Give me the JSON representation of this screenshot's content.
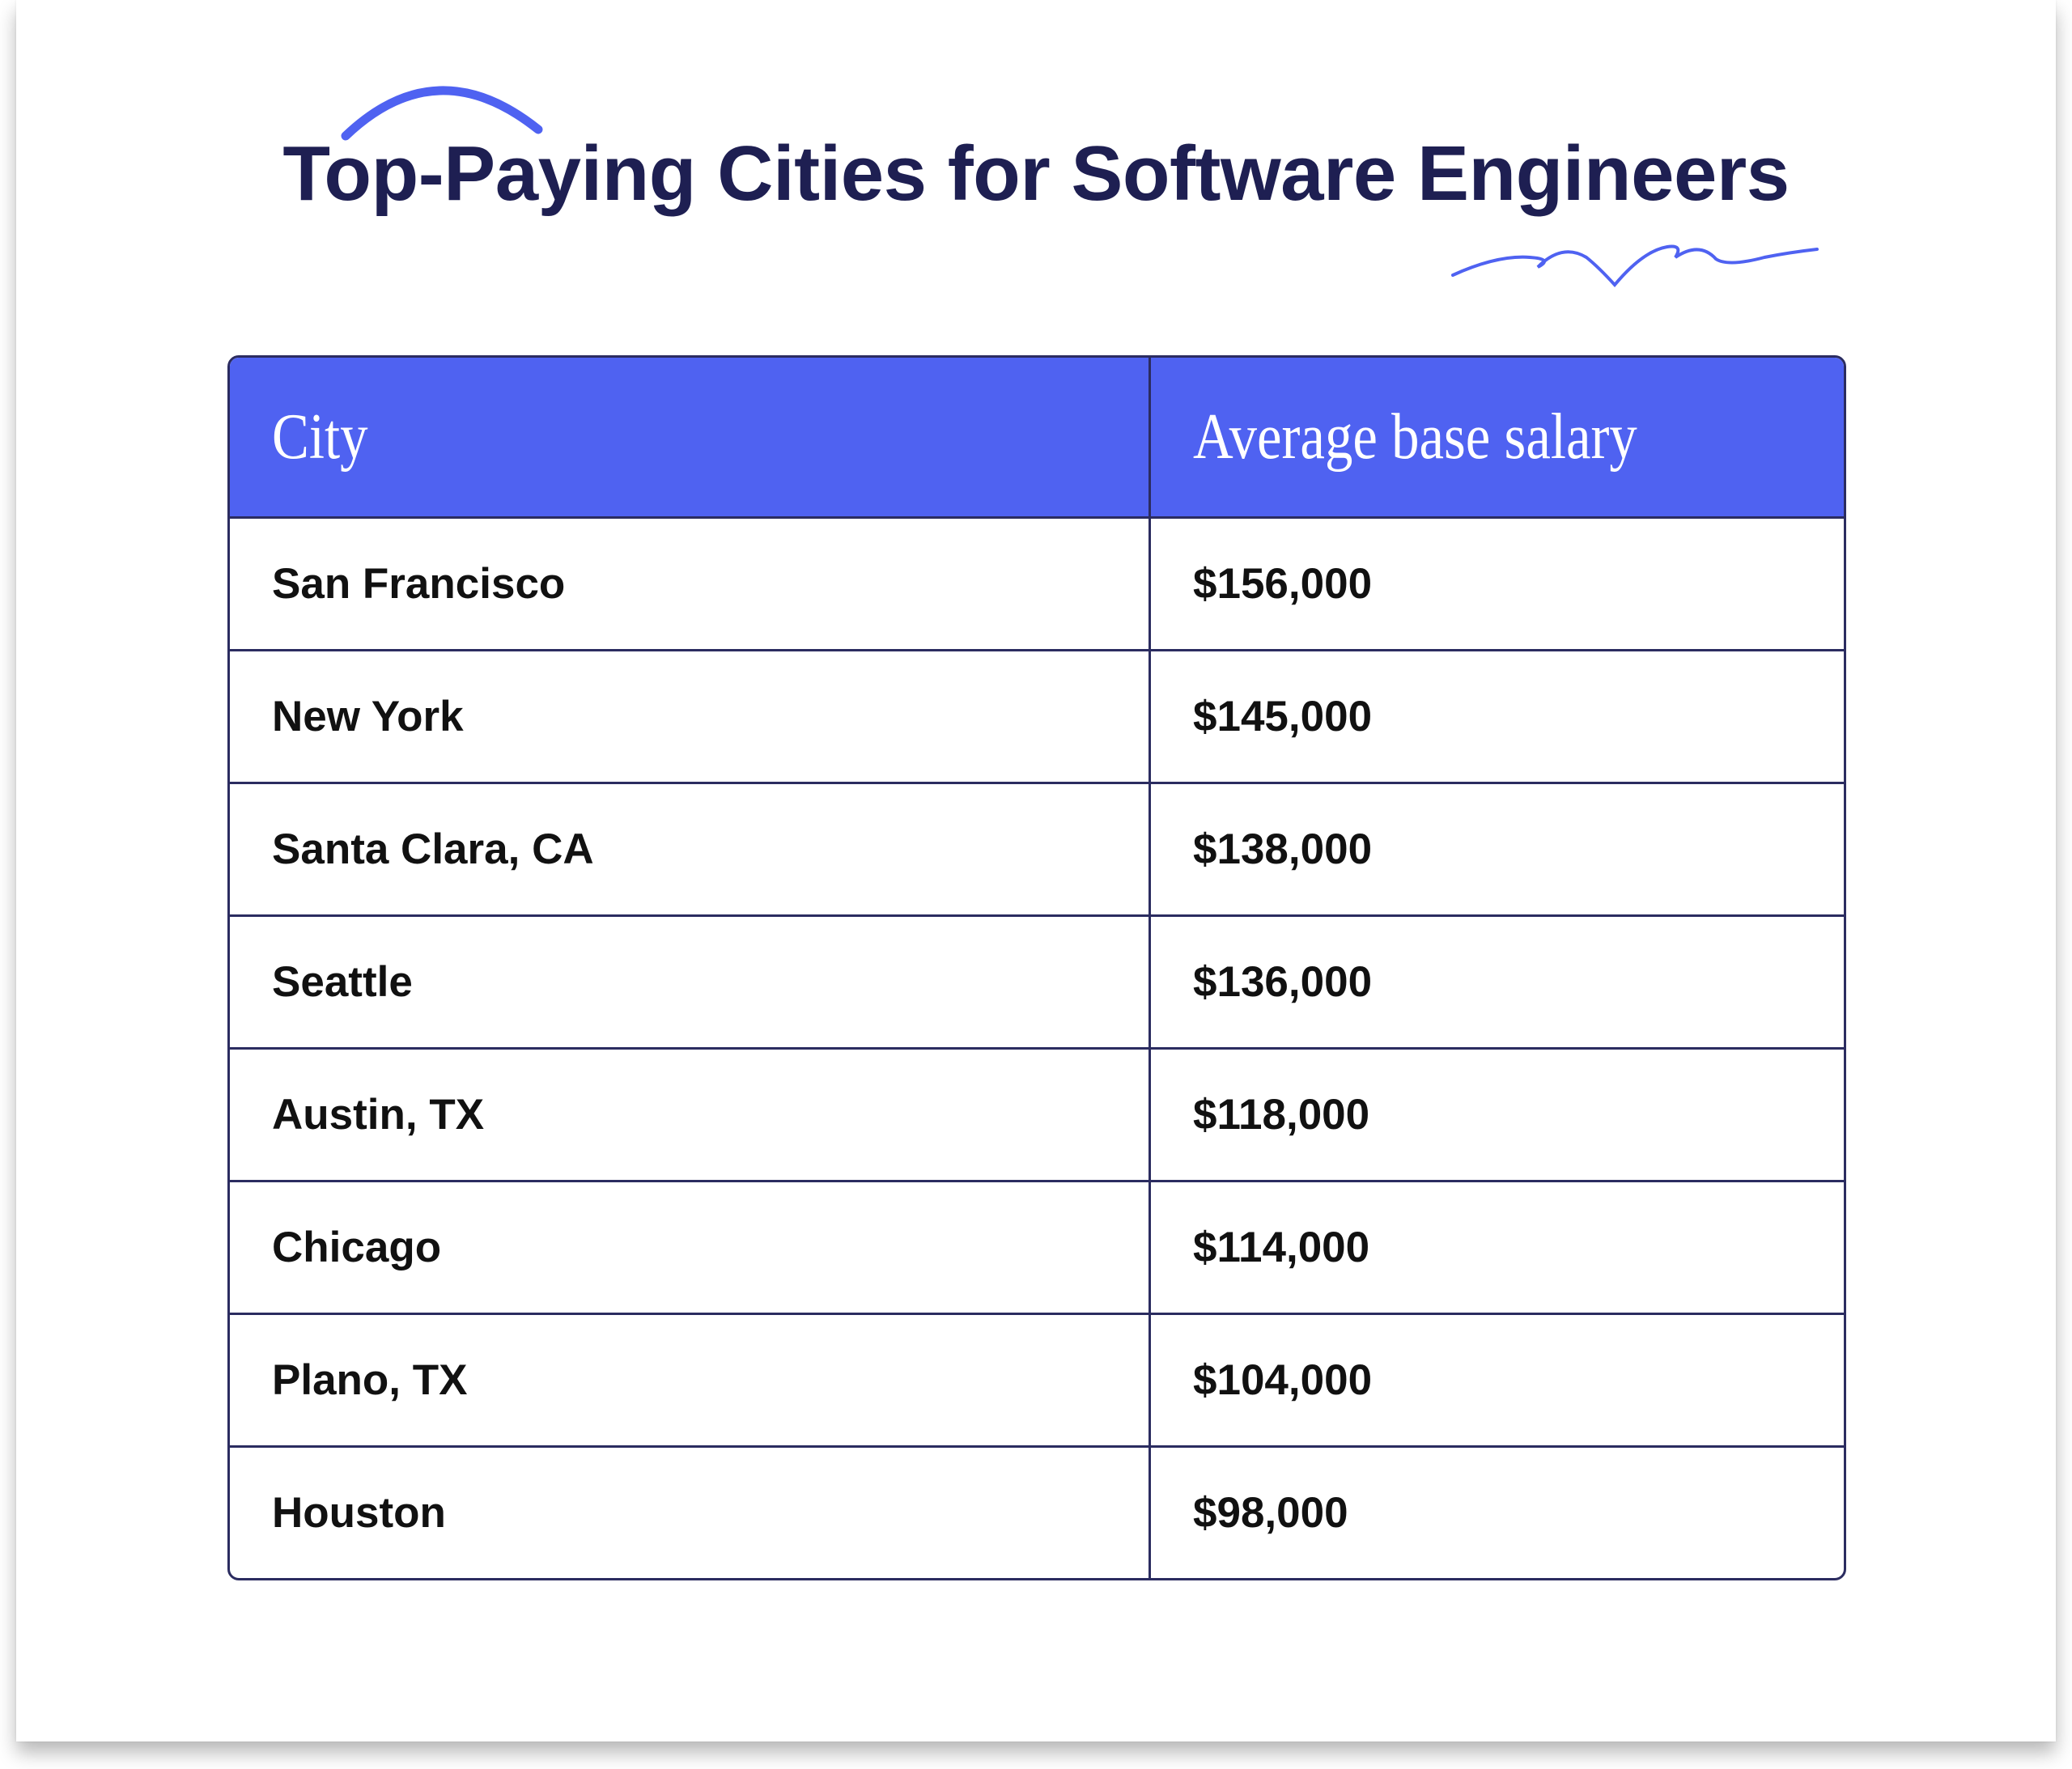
{
  "title": "Top-Paying Cities for Software Engineers",
  "colors": {
    "header": "#4f62f1",
    "border": "#2b2c60",
    "title": "#1e1f52",
    "accent": "#4f62f1"
  },
  "table": {
    "headers": [
      "City",
      "Average base salary"
    ],
    "rows": [
      {
        "city": "San Francisco",
        "salary": "$156,000"
      },
      {
        "city": "New York",
        "salary": "$145,000"
      },
      {
        "city": "Santa Clara, CA",
        "salary": "$138,000"
      },
      {
        "city": "Seattle",
        "salary": "$136,000"
      },
      {
        "city": "Austin, TX",
        "salary": "$118,000"
      },
      {
        "city": "Chicago",
        "salary": "$114,000"
      },
      {
        "city": "Plano, TX",
        "salary": "$104,000"
      },
      {
        "city": "Houston",
        "salary": "$98,000"
      }
    ]
  }
}
